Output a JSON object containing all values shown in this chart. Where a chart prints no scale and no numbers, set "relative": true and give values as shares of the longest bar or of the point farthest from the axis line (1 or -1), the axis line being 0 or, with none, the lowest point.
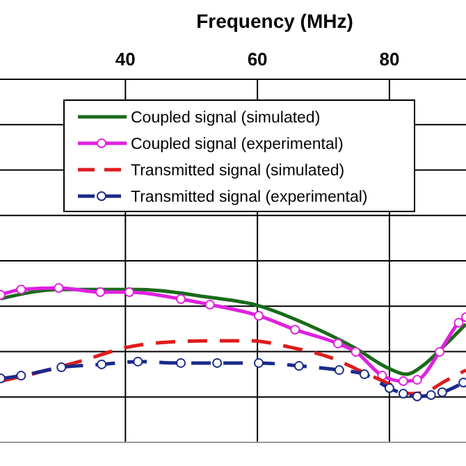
{
  "chart_data": {
    "type": "line",
    "xlabel": "Frequency (MHz)",
    "relative": true,
    "xlim": [
      21,
      91.6
    ],
    "xticks": [
      40,
      60,
      80
    ],
    "grid": true,
    "legend": "top",
    "series": [
      {
        "name": "Coupled signal (simulated)",
        "color": "#1a6b1a",
        "line_style": "solid",
        "marker": "none",
        "x": [
          21.1,
          30.1,
          42.1,
          52.6,
          60,
          67.4,
          74.7,
          80,
          82.5,
          85.3,
          88,
          91.6
        ],
        "values": [
          0.93,
          0.99,
          0.99,
          0.94,
          0.887,
          0.766,
          0.613,
          0.477,
          0.441,
          0.505,
          0.613,
          0.766
        ]
      },
      {
        "name": "Coupled signal (experimental)",
        "color": "#e020e0",
        "line_style": "solid",
        "marker": "circle",
        "x": [
          21.1,
          24.2,
          29.9,
          36.2,
          40.6,
          48.4,
          52.8,
          60.2,
          65.7,
          72.2,
          74.9,
          78.9,
          82.1,
          84.2,
          87.6,
          90.5,
          91.6
        ],
        "values": [
          0.955,
          0.99,
          1.0,
          0.973,
          0.973,
          0.928,
          0.892,
          0.82,
          0.73,
          0.64,
          0.586,
          0.432,
          0.396,
          0.405,
          0.586,
          0.775,
          0.811
        ]
      },
      {
        "name": "Transmitted signal (simulated)",
        "color": "#dd1c1c",
        "line_style": "dashed",
        "marker": "none",
        "x": [
          21.1,
          27.4,
          33.7,
          40,
          46.3,
          52.6,
          58.9,
          65.3,
          71.6,
          75.8,
          80,
          83.2,
          85.3,
          88.4,
          91.6
        ],
        "values": [
          0.396,
          0.459,
          0.532,
          0.613,
          0.649,
          0.658,
          0.658,
          0.613,
          0.541,
          0.459,
          0.378,
          0.315,
          0.324,
          0.396,
          0.468
        ]
      },
      {
        "name": "Transmitted signal (experimental)",
        "color": "#1a2a8a",
        "line_style": "dashed",
        "marker": "circle",
        "x": [
          21.1,
          24.2,
          30.3,
          36.4,
          41.9,
          48.4,
          53.9,
          60.2,
          66.3,
          72.4,
          76.2,
          80,
          82.1,
          84.2,
          86.3,
          88,
          91.2
        ],
        "values": [
          0.414,
          0.432,
          0.486,
          0.505,
          0.523,
          0.514,
          0.514,
          0.514,
          0.495,
          0.468,
          0.441,
          0.351,
          0.315,
          0.297,
          0.306,
          0.324,
          0.387
        ]
      }
    ]
  }
}
